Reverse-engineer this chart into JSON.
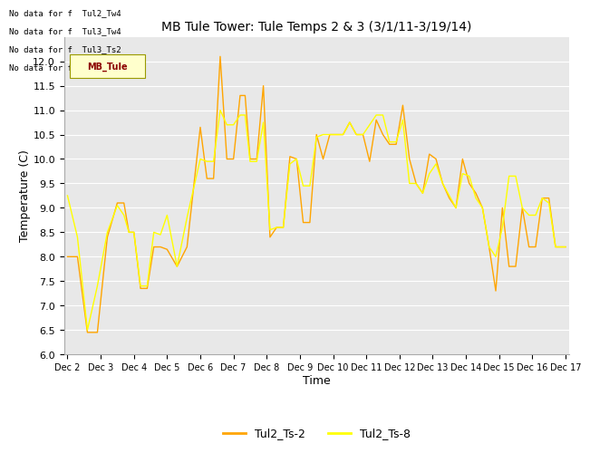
{
  "title": "MB Tule Tower: Tule Temps 2 & 3 (3/1/11-3/19/14)",
  "xlabel": "Time",
  "ylabel": "Temperature (C)",
  "ylim": [
    6.0,
    12.5
  ],
  "yticks": [
    6.0,
    6.5,
    7.0,
    7.5,
    8.0,
    8.5,
    9.0,
    9.5,
    10.0,
    10.5,
    11.0,
    11.5,
    12.0
  ],
  "bg_color": "#e8e8e8",
  "no_data_lines": [
    "No data for f  Tul2_Tw4",
    "No data for f  Tul3_Tw4",
    "No data for f  Tul3_Ts2",
    "No data for f  Tul3_Ts-3"
  ],
  "legend_label1": "Tul2_Ts-2",
  "legend_label2": "Tul2_Ts-8",
  "color1": "#FFA500",
  "color2": "#FFFF00",
  "xtick_labels": [
    "Dec 2",
    "Dec 3",
    "Dec 4",
    "Dec 5",
    "Dec 6",
    "Dec 7",
    "Dec 8",
    "Dec 9",
    "Dec 10",
    "Dec 11",
    "Dec 12",
    "Dec 13",
    "Dec 14",
    "Dec 15",
    "Dec 16",
    "Dec 17"
  ],
  "ts2_x": [
    0,
    0.3,
    0.6,
    0.9,
    1.2,
    1.5,
    1.7,
    1.85,
    2.0,
    2.2,
    2.4,
    2.6,
    2.8,
    3.0,
    3.3,
    3.6,
    4.0,
    4.2,
    4.4,
    4.6,
    4.8,
    5.0,
    5.2,
    5.35,
    5.5,
    5.7,
    5.9,
    6.1,
    6.3,
    6.5,
    6.7,
    6.9,
    7.1,
    7.3,
    7.5,
    7.7,
    7.9,
    8.1,
    8.3,
    8.5,
    8.7,
    8.9,
    9.1,
    9.3,
    9.5,
    9.7,
    9.9,
    10.1,
    10.3,
    10.5,
    10.7,
    10.9,
    11.1,
    11.3,
    11.5,
    11.7,
    11.9,
    12.1,
    12.3,
    12.5,
    12.7,
    12.9,
    13.1,
    13.3,
    13.5,
    13.7,
    13.9,
    14.1,
    14.3,
    14.5,
    14.7,
    14.9,
    15.0
  ],
  "ts2_y": [
    8.0,
    8.0,
    6.45,
    6.45,
    8.4,
    9.1,
    9.1,
    8.5,
    8.5,
    7.35,
    7.35,
    8.2,
    8.2,
    8.15,
    7.8,
    8.2,
    10.65,
    9.6,
    9.6,
    12.1,
    10.0,
    10.0,
    11.3,
    11.3,
    10.0,
    10.0,
    11.5,
    8.4,
    8.6,
    8.6,
    10.05,
    10.0,
    8.7,
    8.7,
    10.5,
    10.0,
    10.5,
    10.5,
    10.5,
    10.75,
    10.5,
    10.5,
    9.95,
    10.8,
    10.5,
    10.3,
    10.3,
    11.1,
    10.0,
    9.5,
    9.3,
    10.1,
    10.0,
    9.5,
    9.2,
    9.0,
    10.0,
    9.5,
    9.3,
    9.0,
    8.2,
    7.3,
    9.0,
    7.8,
    7.8,
    9.0,
    8.2,
    8.2,
    9.2,
    9.2,
    8.2,
    8.2,
    8.2
  ],
  "ts8_x": [
    0,
    0.3,
    0.6,
    0.9,
    1.2,
    1.5,
    1.7,
    1.85,
    2.0,
    2.2,
    2.4,
    2.6,
    2.8,
    3.0,
    3.3,
    3.6,
    4.0,
    4.2,
    4.4,
    4.6,
    4.8,
    5.0,
    5.2,
    5.35,
    5.5,
    5.7,
    5.9,
    6.1,
    6.3,
    6.5,
    6.7,
    6.9,
    7.1,
    7.3,
    7.5,
    7.7,
    7.9,
    8.1,
    8.3,
    8.5,
    8.7,
    8.9,
    9.1,
    9.3,
    9.5,
    9.7,
    9.9,
    10.1,
    10.3,
    10.5,
    10.7,
    10.9,
    11.1,
    11.3,
    11.5,
    11.7,
    11.9,
    12.1,
    12.3,
    12.5,
    12.7,
    12.9,
    13.1,
    13.3,
    13.5,
    13.7,
    13.9,
    14.1,
    14.3,
    14.5,
    14.7,
    14.9,
    15.0
  ],
  "ts8_y": [
    9.25,
    8.4,
    6.5,
    7.4,
    8.5,
    9.05,
    8.85,
    8.5,
    8.5,
    7.4,
    7.4,
    8.5,
    8.45,
    8.85,
    7.8,
    8.8,
    10.0,
    9.95,
    9.95,
    11.0,
    10.7,
    10.7,
    10.9,
    10.9,
    9.95,
    9.95,
    10.75,
    8.55,
    8.6,
    8.6,
    9.9,
    10.0,
    9.45,
    9.45,
    10.45,
    10.5,
    10.5,
    10.5,
    10.5,
    10.75,
    10.5,
    10.5,
    10.7,
    10.9,
    10.9,
    10.35,
    10.35,
    10.8,
    9.5,
    9.5,
    9.3,
    9.7,
    9.9,
    9.5,
    9.25,
    9.0,
    9.7,
    9.65,
    9.2,
    9.0,
    8.2,
    8.0,
    8.6,
    9.65,
    9.65,
    9.0,
    8.85,
    8.85,
    9.2,
    9.1,
    8.2,
    8.2,
    8.2
  ]
}
